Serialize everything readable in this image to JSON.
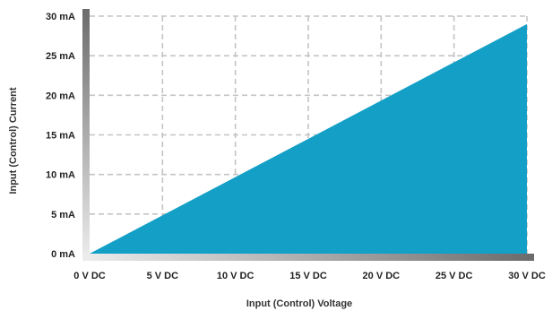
{
  "colors": {
    "fill": "#139fc6",
    "grid": "#c4c4c4",
    "text": "#222222"
  },
  "chart_data": {
    "type": "area",
    "title": "",
    "xlabel": "Input (Control) Voltage",
    "ylabel": "Input (Control) Current",
    "x_tick_labels": [
      "0 V DC",
      "5 V DC",
      "10 V DC",
      "15 V DC",
      "20 V DC",
      "25 V DC",
      "30 V DC"
    ],
    "y_tick_labels": [
      "0 mA",
      "5 mA",
      "10 mA",
      "15 mA",
      "20 mA",
      "25 mA",
      "30 mA"
    ],
    "x_ticks": [
      0,
      5,
      10,
      15,
      20,
      25,
      30
    ],
    "y_ticks": [
      0,
      5,
      10,
      15,
      20,
      25,
      30
    ],
    "xlim": [
      0,
      30
    ],
    "ylim": [
      0,
      30
    ],
    "grid": true,
    "series": [
      {
        "x": [
          0,
          30
        ],
        "y": [
          0,
          29
        ]
      }
    ]
  }
}
